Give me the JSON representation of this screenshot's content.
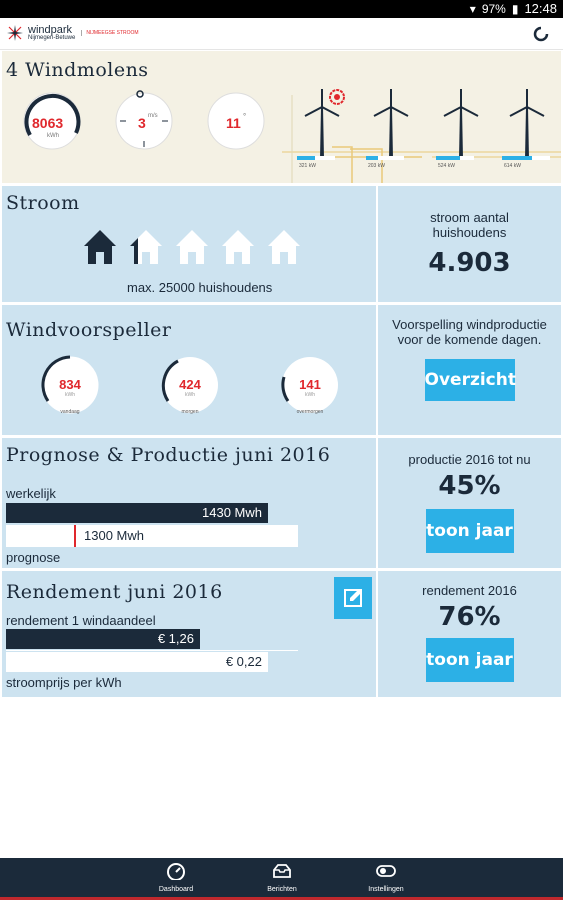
{
  "status": {
    "battery": "97%",
    "time": "12:48"
  },
  "app": {
    "logo_name": "windpark",
    "logo_sub": "Nijmegen-Betuwe",
    "logo_tag": "NIJMEEGSE STROOM"
  },
  "windmills": {
    "title": "4 Windmolens",
    "total_value": "8063",
    "total_unit": "kWh",
    "compass_value": "3",
    "compass_unit": "m/s",
    "temp_value": "11",
    "temp_unit": "°",
    "turbines": [
      {
        "label": "321 kW"
      },
      {
        "label": "203 kW"
      },
      {
        "label": "524 kW"
      },
      {
        "label": "614 kW"
      }
    ]
  },
  "stroom": {
    "title": "Stroom",
    "max_label": "max. 25000 huishoudens",
    "right_label": "stroom aantal huishoudens",
    "right_value": "4.903"
  },
  "wind": {
    "title": "Windvoorspeller",
    "days": [
      {
        "value": "834",
        "unit": "kWh",
        "label": "vandaag"
      },
      {
        "value": "424",
        "unit": "kWh",
        "label": "morgen"
      },
      {
        "value": "141",
        "unit": "kWh",
        "label": "overmorgen"
      }
    ],
    "right_label": "Voorspelling windproductie voor de komende dagen.",
    "button": "Overzicht"
  },
  "prognose": {
    "title": "Prognose & Productie juni 2016",
    "werkelijk_label": "werkelijk",
    "werkelijk_value": "1430 Mwh",
    "prognose_value": "1300 Mwh",
    "prognose_label": "prognose",
    "right_label": "productie 2016 tot nu",
    "right_value": "45%",
    "button": "toon jaar"
  },
  "rendement": {
    "title": "Rendement juni 2016",
    "sub_label": "rendement 1 windaandeel",
    "value1": "€ 1,26",
    "value2": "€ 0,22",
    "bottom_label": "stroomprijs per kWh",
    "right_label": "rendement 2016",
    "right_value": "76%",
    "button": "toon jaar"
  },
  "nav": [
    {
      "label": "Dashboard"
    },
    {
      "label": "Berichten"
    },
    {
      "label": "Instellingen"
    }
  ]
}
